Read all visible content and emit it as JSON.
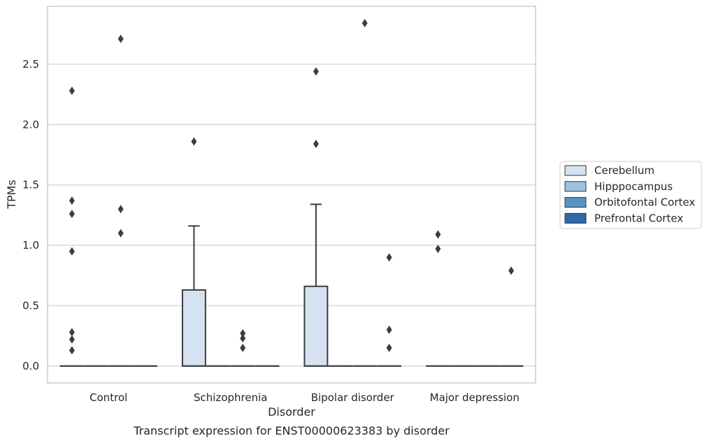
{
  "chart_data": {
    "type": "box",
    "caption": "Transcript expression for ENST00000623383 by disorder",
    "xlabel": "Disorder",
    "ylabel": "TPMs",
    "ylim": [
      -0.14,
      2.98
    ],
    "yticks": [
      0.0,
      0.5,
      1.0,
      1.5,
      2.0,
      2.5
    ],
    "ytick_labels": [
      "0.0",
      "0.5",
      "1.0",
      "1.5",
      "2.0",
      "2.5"
    ],
    "grid": "horizontal",
    "legend_position": "right",
    "categories": [
      "Control",
      "Schizophrenia",
      "Bipolar disorder",
      "Major depression"
    ],
    "series": [
      {
        "name": "Cerebellum",
        "color": "#d4e2f1",
        "boxes": [
          {
            "category": "Control",
            "q1": 0.0,
            "median": 0.0,
            "q3": 0.0,
            "whisker_low": 0.0,
            "whisker_high": 0.0,
            "outliers": [
              2.28,
              1.37,
              1.26,
              0.95,
              0.28,
              0.22,
              0.13
            ]
          },
          {
            "category": "Schizophrenia",
            "q1": 0.0,
            "median": 0.0,
            "q3": 0.63,
            "whisker_low": 0.0,
            "whisker_high": 1.16,
            "outliers": [
              1.86
            ]
          },
          {
            "category": "Bipolar disorder",
            "q1": 0.0,
            "median": 0.0,
            "q3": 0.66,
            "whisker_low": 0.0,
            "whisker_high": 1.34,
            "outliers": [
              2.44,
              1.84
            ]
          },
          {
            "category": "Major depression",
            "q1": 0.0,
            "median": 0.0,
            "q3": 0.0,
            "whisker_low": 0.0,
            "whisker_high": 0.0,
            "outliers": [
              1.09,
              0.97
            ]
          }
        ]
      },
      {
        "name": "Hipppocampus",
        "color": "#9ac3e0",
        "boxes": [
          {
            "category": "Control",
            "q1": 0.0,
            "median": 0.0,
            "q3": 0.0,
            "whisker_low": 0.0,
            "whisker_high": 0.0,
            "outliers": []
          },
          {
            "category": "Schizophrenia",
            "q1": 0.0,
            "median": 0.0,
            "q3": 0.0,
            "whisker_low": 0.0,
            "whisker_high": 0.0,
            "outliers": []
          },
          {
            "category": "Bipolar disorder",
            "q1": 0.0,
            "median": 0.0,
            "q3": 0.0,
            "whisker_low": 0.0,
            "whisker_high": 0.0,
            "outliers": []
          },
          {
            "category": "Major depression",
            "q1": 0.0,
            "median": 0.0,
            "q3": 0.0,
            "whisker_low": 0.0,
            "whisker_high": 0.0,
            "outliers": []
          }
        ]
      },
      {
        "name": "Orbitofontal Cortex",
        "color": "#5895c5",
        "boxes": [
          {
            "category": "Control",
            "q1": 0.0,
            "median": 0.0,
            "q3": 0.0,
            "whisker_low": 0.0,
            "whisker_high": 0.0,
            "outliers": [
              2.71,
              1.3,
              1.1
            ]
          },
          {
            "category": "Schizophrenia",
            "q1": 0.0,
            "median": 0.0,
            "q3": 0.0,
            "whisker_low": 0.0,
            "whisker_high": 0.0,
            "outliers": [
              0.27,
              0.23,
              0.15
            ]
          },
          {
            "category": "Bipolar disorder",
            "q1": 0.0,
            "median": 0.0,
            "q3": 0.0,
            "whisker_low": 0.0,
            "whisker_high": 0.0,
            "outliers": [
              2.84
            ]
          },
          {
            "category": "Major depression",
            "q1": 0.0,
            "median": 0.0,
            "q3": 0.0,
            "whisker_low": 0.0,
            "whisker_high": 0.0,
            "outliers": []
          }
        ]
      },
      {
        "name": "Prefrontal Cortex",
        "color": "#2c6aa8",
        "boxes": [
          {
            "category": "Control",
            "q1": 0.0,
            "median": 0.0,
            "q3": 0.0,
            "whisker_low": 0.0,
            "whisker_high": 0.0,
            "outliers": []
          },
          {
            "category": "Schizophrenia",
            "q1": 0.0,
            "median": 0.0,
            "q3": 0.0,
            "whisker_low": 0.0,
            "whisker_high": 0.0,
            "outliers": []
          },
          {
            "category": "Bipolar disorder",
            "q1": 0.0,
            "median": 0.0,
            "q3": 0.0,
            "whisker_low": 0.0,
            "whisker_high": 0.0,
            "outliers": [
              0.9,
              0.3,
              0.15
            ]
          },
          {
            "category": "Major depression",
            "q1": 0.0,
            "median": 0.0,
            "q3": 0.0,
            "whisker_low": 0.0,
            "whisker_high": 0.0,
            "outliers": [
              0.79
            ]
          }
        ]
      }
    ]
  }
}
